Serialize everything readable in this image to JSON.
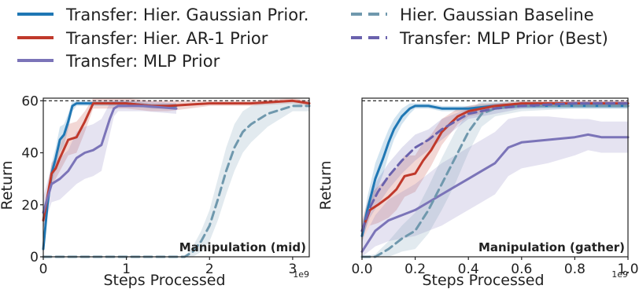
{
  "legend": {
    "items": [
      {
        "label": "Transfer: Hier. Gaussian Prior.",
        "color": "#1f77b4",
        "dash": false
      },
      {
        "label": "Transfer: Hier. AR-1 Prior",
        "color": "#c0392b",
        "dash": false
      },
      {
        "label": "Transfer: MLP Prior",
        "color": "#7b74b8",
        "dash": false
      },
      {
        "label": "Hier. Gaussian Baseline",
        "color": "#6f98ad",
        "dash": true
      },
      {
        "label": "Transfer: MLP Prior (Best)",
        "color": "#6a62ad",
        "dash": true
      }
    ]
  },
  "chart_data": [
    {
      "type": "line",
      "annotation": "Manipulation (mid)",
      "xlabel": "Steps Processed",
      "ylabel": "Return",
      "x_multiplier_label": "1e9",
      "xlim": [
        0,
        3.2
      ],
      "ylim": [
        0,
        61
      ],
      "xticks": [
        0,
        1,
        2,
        3
      ],
      "xtick_labels": [
        "0",
        "1",
        "2",
        "3"
      ],
      "yticks": [
        0,
        20,
        40,
        60
      ],
      "ytick_labels": [
        "0",
        "20",
        "40",
        "60"
      ],
      "reference_line": 60,
      "series": [
        {
          "name": "Transfer: Hier. Gaussian Prior.",
          "color": "#1f77b4",
          "dash": false,
          "x": [
            0,
            0.05,
            0.1,
            0.15,
            0.2,
            0.25,
            0.3,
            0.35,
            0.4,
            0.5,
            0.7,
            1.0,
            1.3,
            1.6
          ],
          "y": [
            3,
            20,
            32,
            38,
            45,
            47,
            52,
            58,
            59,
            59,
            59,
            59,
            58,
            58
          ],
          "band": [
            2,
            3,
            4,
            4,
            5,
            4,
            3,
            2,
            1,
            1,
            1,
            1,
            1,
            1
          ]
        },
        {
          "name": "Transfer: Hier. AR-1 Prior",
          "color": "#c0392b",
          "dash": false,
          "x": [
            0,
            0.05,
            0.1,
            0.15,
            0.2,
            0.3,
            0.4,
            0.5,
            0.6,
            0.7,
            0.8,
            1.0,
            1.3,
            1.5,
            2.0,
            2.5,
            3.0,
            3.2
          ],
          "y": [
            14,
            23,
            32,
            34,
            38,
            45,
            46,
            52,
            59,
            59,
            59,
            59,
            58,
            58,
            59,
            59,
            60,
            59
          ],
          "band": [
            4,
            4,
            4,
            4,
            5,
            6,
            6,
            4,
            2,
            2,
            2,
            2,
            2,
            2,
            1,
            1,
            1,
            1
          ]
        },
        {
          "name": "Transfer: MLP Prior",
          "color": "#7b74b8",
          "dash": false,
          "x": [
            0,
            0.1,
            0.2,
            0.3,
            0.4,
            0.5,
            0.6,
            0.7,
            0.8,
            0.85,
            0.9,
            1.0,
            1.2,
            1.6
          ],
          "y": [
            17,
            28,
            30,
            33,
            38,
            40,
            41,
            43,
            53,
            57,
            58,
            58,
            58,
            57
          ],
          "band": [
            6,
            7,
            8,
            8,
            10,
            10,
            10,
            10,
            6,
            3,
            2,
            2,
            2,
            2
          ]
        },
        {
          "name": "Hier. Gaussian Baseline",
          "color": "#6f98ad",
          "dash": true,
          "x": [
            0,
            0.5,
            1.0,
            1.5,
            1.7,
            1.8,
            1.9,
            2.0,
            2.1,
            2.2,
            2.3,
            2.4,
            2.5,
            2.6,
            2.7,
            2.8,
            2.9,
            3.0,
            3.1,
            3.2
          ],
          "y": [
            0,
            0,
            0,
            0,
            0,
            2,
            6,
            12,
            22,
            33,
            42,
            48,
            51,
            53,
            55,
            56,
            57,
            58,
            58,
            58
          ],
          "band": [
            0,
            0,
            0,
            0,
            0,
            2,
            4,
            6,
            8,
            9,
            9,
            8,
            7,
            6,
            5,
            4,
            3,
            2,
            2,
            2
          ]
        }
      ]
    },
    {
      "type": "line",
      "annotation": "Manipulation (gather)",
      "xlabel": "Steps Processed",
      "ylabel": "Return",
      "x_multiplier_label": "1e9",
      "xlim": [
        0,
        1.0
      ],
      "ylim": [
        0,
        61
      ],
      "xticks": [
        0,
        0.2,
        0.4,
        0.6,
        0.8,
        1.0
      ],
      "xtick_labels": [
        "0.0",
        "0.2",
        "0.4",
        "0.6",
        "0.8",
        "1.0"
      ],
      "yticks": [],
      "ytick_labels": [],
      "reference_line": 60,
      "series": [
        {
          "name": "Transfer: Hier. Gaussian Prior.",
          "color": "#1f77b4",
          "dash": false,
          "x": [
            0,
            0.02,
            0.05,
            0.08,
            0.1,
            0.12,
            0.15,
            0.18,
            0.2,
            0.25,
            0.3,
            0.4,
            0.5,
            0.6,
            0.8,
            1.0
          ],
          "y": [
            8,
            18,
            30,
            38,
            44,
            49,
            54,
            57,
            58,
            58,
            57,
            57,
            58,
            58,
            58,
            58
          ],
          "band": [
            3,
            5,
            6,
            6,
            5,
            4,
            3,
            2,
            1,
            1,
            1,
            1,
            1,
            1,
            1,
            1
          ]
        },
        {
          "name": "Transfer: Hier. AR-1 Prior",
          "color": "#c0392b",
          "dash": false,
          "x": [
            0,
            0.03,
            0.06,
            0.1,
            0.13,
            0.16,
            0.2,
            0.23,
            0.26,
            0.3,
            0.33,
            0.36,
            0.4,
            0.45,
            0.5,
            0.6,
            0.8,
            1.0
          ],
          "y": [
            10,
            18,
            20,
            23,
            26,
            31,
            32,
            37,
            41,
            48,
            51,
            54,
            56,
            57,
            58,
            59,
            59,
            59
          ],
          "band": [
            4,
            6,
            7,
            8,
            8,
            8,
            7,
            7,
            6,
            5,
            4,
            3,
            2,
            2,
            1,
            1,
            1,
            1
          ]
        },
        {
          "name": "Transfer: MLP Prior",
          "color": "#7b74b8",
          "dash": false,
          "x": [
            0,
            0.05,
            0.1,
            0.15,
            0.2,
            0.25,
            0.3,
            0.35,
            0.4,
            0.45,
            0.5,
            0.55,
            0.6,
            0.7,
            0.8,
            0.85,
            0.9,
            1.0
          ],
          "y": [
            2,
            10,
            14,
            16,
            18,
            21,
            24,
            27,
            30,
            33,
            36,
            42,
            44,
            45,
            46,
            47,
            46,
            46
          ],
          "band": [
            4,
            6,
            8,
            9,
            10,
            11,
            12,
            12,
            12,
            12,
            12,
            11,
            10,
            9,
            7,
            6,
            6,
            6
          ]
        },
        {
          "name": "Hier. Gaussian Baseline",
          "color": "#6f98ad",
          "dash": true,
          "x": [
            0,
            0.05,
            0.1,
            0.15,
            0.2,
            0.25,
            0.3,
            0.35,
            0.4,
            0.45,
            0.5,
            0.6,
            0.8,
            1.0
          ],
          "y": [
            0,
            0,
            3,
            7,
            10,
            18,
            28,
            38,
            48,
            55,
            57,
            58,
            58,
            58
          ],
          "band": [
            0,
            1,
            3,
            5,
            7,
            9,
            10,
            10,
            8,
            5,
            3,
            2,
            1,
            1
          ]
        },
        {
          "name": "Transfer: MLP Prior (Best)",
          "color": "#6a62ad",
          "dash": true,
          "x": [
            0,
            0.03,
            0.06,
            0.1,
            0.15,
            0.2,
            0.25,
            0.3,
            0.35,
            0.4,
            0.5,
            0.6,
            0.8,
            1.0
          ],
          "y": [
            10,
            19,
            25,
            31,
            37,
            42,
            45,
            49,
            52,
            55,
            57,
            58,
            59,
            59
          ],
          "band": [
            3,
            4,
            5,
            5,
            5,
            5,
            4,
            4,
            3,
            2,
            2,
            1,
            1,
            1
          ]
        }
      ]
    }
  ]
}
